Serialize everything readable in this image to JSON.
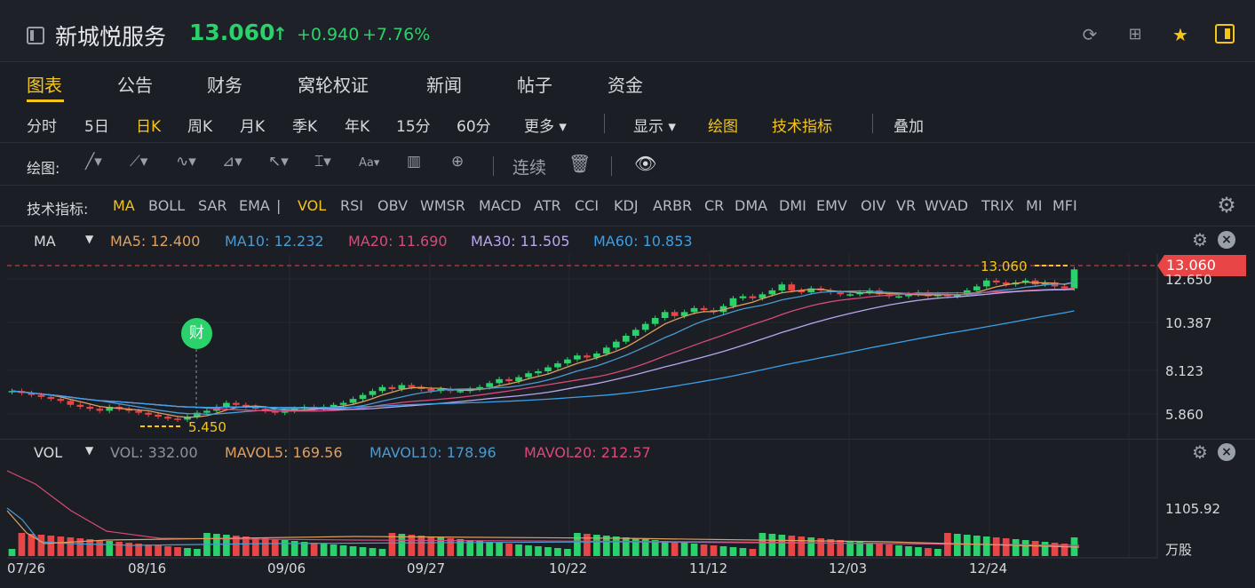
{
  "header": {
    "stock_name": "新城悦服务",
    "price": "13.060",
    "change": "+0.940",
    "change_pct": "+7.76%"
  },
  "nav": {
    "tabs": [
      {
        "label": "图表"
      },
      {
        "label": "公告"
      },
      {
        "label": "财务"
      },
      {
        "label": "窝轮权证"
      },
      {
        "label": "新闻"
      },
      {
        "label": "帖子"
      },
      {
        "label": "资金"
      }
    ]
  },
  "periods": {
    "items": [
      "分时",
      "5日",
      "日K",
      "周K",
      "月K",
      "季K",
      "年K",
      "15分",
      "60分"
    ],
    "more": "更多",
    "display": "显示",
    "draw": "绘图",
    "tech": "技术指标",
    "overlay": "叠加"
  },
  "draw_toolbar": {
    "label": "绘图:",
    "continuous": "连续"
  },
  "indicators": {
    "label": "技术指标:",
    "items": [
      "MA",
      "BOLL",
      "SAR",
      "EMA",
      "VOL",
      "RSI",
      "OBV",
      "WMSR",
      "MACD",
      "ATR",
      "CCI",
      "KDJ",
      "ARBR",
      "CR",
      "DMA",
      "DMI",
      "EMV",
      "OIV",
      "VR",
      "WVAD",
      "TRIX",
      "MI",
      "MFI"
    ]
  },
  "ma_panel": {
    "name": "MA",
    "ma5": "MA5: 12.400",
    "ma10": "MA10: 12.232",
    "ma20": "MA20: 11.690",
    "ma30": "MA30: 11.505",
    "ma60": "MA60: 10.853",
    "colors": {
      "ma5": "#e0a060",
      "ma10": "#4a9bd1",
      "ma20": "#d84a7a",
      "ma30": "#b9a6f0",
      "ma60": "#3aa0e8"
    }
  },
  "vol_panel": {
    "name": "VOL",
    "vol": "VOL: 332.00",
    "mavol5": "MAVOL5: 169.56",
    "mavol10": "MAVOL10: 178.96",
    "mavol20": "MAVOL20: 212.57",
    "axis_top": "1105.92",
    "unit": "万股"
  },
  "price_axis": {
    "current_tag": "13.060",
    "labels": [
      "12.650",
      "10.387",
      "8.123",
      "5.860"
    ],
    "high_label": "13.060",
    "low_label": "5.450"
  },
  "cai_badge": "财",
  "dates": [
    "07/26",
    "08/16",
    "09/06",
    "09/27",
    "10/22",
    "11/12",
    "12/03",
    "12/24"
  ],
  "chart_data": {
    "type": "candlestick",
    "price_range": [
      5.2,
      13.3
    ],
    "closes": [
      6.9,
      6.8,
      6.7,
      6.6,
      6.5,
      6.4,
      6.2,
      6.1,
      6.0,
      5.9,
      6.1,
      6.0,
      5.9,
      5.8,
      5.7,
      5.6,
      5.5,
      5.45,
      5.6,
      5.8,
      5.9,
      6.1,
      6.3,
      6.2,
      6.1,
      6.0,
      5.9,
      5.8,
      5.9,
      6.0,
      6.1,
      6.0,
      6.1,
      6.2,
      6.3,
      6.5,
      6.7,
      6.9,
      7.1,
      7.0,
      7.2,
      7.1,
      7.0,
      6.9,
      7.0,
      6.9,
      6.9,
      7.0,
      7.1,
      7.3,
      7.5,
      7.4,
      7.6,
      7.8,
      7.9,
      8.1,
      8.3,
      8.5,
      8.7,
      8.6,
      8.8,
      9.1,
      9.4,
      9.7,
      10.0,
      10.3,
      10.6,
      10.9,
      10.7,
      10.9,
      11.1,
      11.0,
      10.9,
      11.2,
      11.6,
      11.7,
      11.6,
      11.8,
      12.0,
      12.3,
      12.0,
      11.9,
      12.1,
      12.0,
      11.9,
      11.8,
      11.8,
      11.9,
      12.0,
      11.8,
      11.7,
      11.7,
      11.8,
      11.9,
      11.7,
      11.8,
      11.7,
      11.8,
      12.0,
      12.2,
      12.5,
      12.4,
      12.3,
      12.4,
      12.5,
      12.3,
      12.4,
      12.2,
      12.1,
      13.06
    ]
  }
}
